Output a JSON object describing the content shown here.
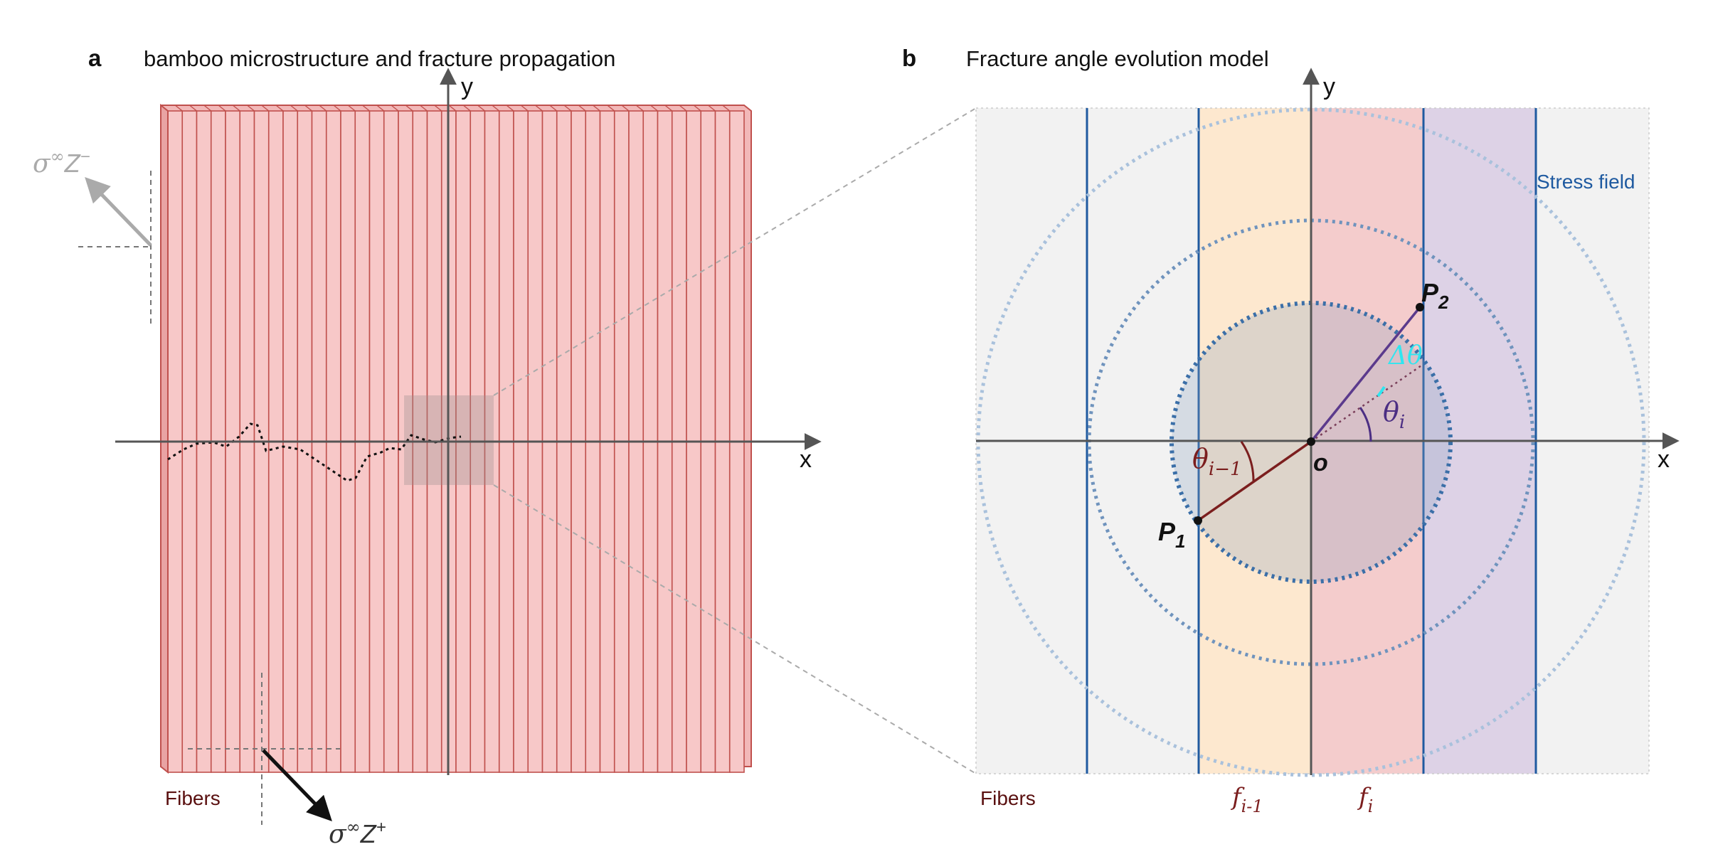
{
  "panel_a": {
    "label": "a",
    "title": "bamboo  microstructure and fracture propagation",
    "x_axis": "x",
    "y_axis": "y",
    "fibers_label": "Fibers",
    "fiber_count": 40,
    "load_top": {
      "sigma": "σ",
      "sup": "∞",
      "z": "Z",
      "zsup": "−"
    },
    "load_bottom": {
      "sigma": "σ",
      "sup": "∞",
      "z": "Z",
      "zsup": "+"
    }
  },
  "panel_b": {
    "label": "b",
    "title": "Fracture angle evolution model",
    "x_axis": "x",
    "y_axis": "y",
    "fibers_label": "Fibers",
    "stress_field_label": "Stress field",
    "origin_label": "o",
    "p1": {
      "main": "P",
      "sub": "1"
    },
    "p2": {
      "main": "P",
      "sub": "2"
    },
    "theta_i": {
      "main": "θ",
      "sub": "i"
    },
    "theta_prev": {
      "main": "θ",
      "sub": "i−1"
    },
    "delta_theta": "Δθ",
    "f_prev": {
      "main": "f",
      "sub": "i-1"
    },
    "f_i": {
      "main": "f",
      "sub": "i"
    }
  },
  "colors": {
    "fiber_fill": "#f7c8c8",
    "fiber_stroke": "#c0504d",
    "band_prev": "#fde8cf",
    "band_i": "#f4cccc",
    "band_next": "#ddd2e6",
    "band_gray": "#f2f2f2",
    "fiber_line": "#1f5aa0",
    "circle_dark": "#3b6fa8",
    "circle_light": "#a9c1dc",
    "delta": "#2ee6f0",
    "theta_i": "#4b2e83",
    "theta_prev": "#7b1e1e",
    "label_dark_red": "#5a1010"
  }
}
